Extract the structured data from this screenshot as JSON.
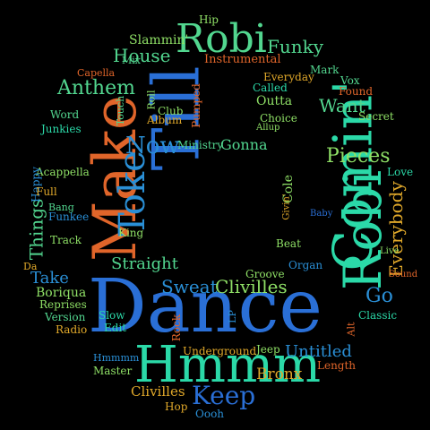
{
  "words": [
    {
      "text": "Dance",
      "color": "#2a6fd6"
    },
    {
      "text": "Hmmm",
      "color": "#2bd9a8"
    },
    {
      "text": "Comin'",
      "color": "#2bd9a8"
    },
    {
      "text": "Robi",
      "color": "#2bd9a8"
    },
    {
      "text": "Robi",
      "color": "#52d68f"
    },
    {
      "text": "Till",
      "color": "#2a6fd6"
    },
    {
      "text": "Make",
      "color": "#e0652a"
    },
    {
      "text": "Toke",
      "color": "#2a8fd6"
    },
    {
      "text": "Keep",
      "color": "#2a6fd6"
    },
    {
      "text": "Pieces",
      "color": "#8fe066"
    },
    {
      "text": "Everybody",
      "color": "#e0a82a"
    },
    {
      "text": "Things",
      "color": "#52d68f"
    },
    {
      "text": "Now",
      "color": "#2a8fd6"
    },
    {
      "text": "Anthem",
      "color": "#52d68f"
    },
    {
      "text": "House",
      "color": "#52d68f"
    },
    {
      "text": "Funky",
      "color": "#52d68f"
    },
    {
      "text": "Want",
      "color": "#52d68f"
    },
    {
      "text": "Sweat",
      "color": "#2a8fd6"
    },
    {
      "text": "Clivilles",
      "color": "#8fe066"
    },
    {
      "text": "Straight",
      "color": "#52d68f"
    },
    {
      "text": "Go",
      "color": "#2a8fd6"
    },
    {
      "text": "Take",
      "color": "#2a8fd6"
    },
    {
      "text": "Untitled",
      "color": "#2a8fd6"
    },
    {
      "text": "Clivilles",
      "color": "#e0a82a"
    },
    {
      "text": "Bronx",
      "color": "#e0a82a"
    },
    {
      "text": "Boriqua",
      "color": "#8fe066"
    },
    {
      "text": "Gonna",
      "color": "#52d68f"
    },
    {
      "text": "Slammin'",
      "color": "#8fe066"
    },
    {
      "text": "Instrumental",
      "color": "#e0652a"
    },
    {
      "text": "Everyday",
      "color": "#e0a82a"
    },
    {
      "text": "Outta",
      "color": "#8fe066"
    },
    {
      "text": "Called",
      "color": "#2bd9a8"
    },
    {
      "text": "Choice",
      "color": "#8fe066"
    },
    {
      "text": "Ministry",
      "color": "#52d68f"
    },
    {
      "text": "Club",
      "color": "#8fe066"
    },
    {
      "text": "Album",
      "color": "#e0a82a"
    },
    {
      "text": "Pumped",
      "color": "#e0652a"
    },
    {
      "text": "Acappella",
      "color": "#8fe066"
    },
    {
      "text": "Junkies",
      "color": "#2bd9a8"
    },
    {
      "text": "Word",
      "color": "#52d68f"
    },
    {
      "text": "Reprises",
      "color": "#8fe066"
    },
    {
      "text": "Version",
      "color": "#52d68f"
    },
    {
      "text": "Radio",
      "color": "#e0a82a"
    },
    {
      "text": "Slow",
      "color": "#2bd9a8"
    },
    {
      "text": "Edit",
      "color": "#2bd9a8"
    },
    {
      "text": "Master",
      "color": "#8fe066"
    },
    {
      "text": "Length",
      "color": "#e0652a"
    },
    {
      "text": "Classic",
      "color": "#2bd9a8"
    },
    {
      "text": "Organ",
      "color": "#2a8fd6"
    },
    {
      "text": "Beat",
      "color": "#8fe066"
    },
    {
      "text": "Cole",
      "color": "#8fe066"
    },
    {
      "text": "Love",
      "color": "#2bd9a8"
    },
    {
      "text": "Secret",
      "color": "#8fe066"
    },
    {
      "text": "Found",
      "color": "#e0652a"
    },
    {
      "text": "Vox",
      "color": "#52d68f"
    },
    {
      "text": "Mark",
      "color": "#52d68f"
    },
    {
      "text": "Hip",
      "color": "#8fe066"
    },
    {
      "text": "Hop",
      "color": "#e0a82a"
    },
    {
      "text": "Oooh",
      "color": "#2a8fd6"
    },
    {
      "text": "Jeep",
      "color": "#8fe066"
    },
    {
      "text": "Underground",
      "color": "#e0a82a"
    },
    {
      "text": "Rock",
      "color": "#e0652a"
    },
    {
      "text": "Groove",
      "color": "#8fe066"
    },
    {
      "text": "Track",
      "color": "#8fe066"
    },
    {
      "text": "Funkee",
      "color": "#2a8fd6"
    },
    {
      "text": "King",
      "color": "#8fe066"
    },
    {
      "text": "Happy",
      "color": "#2a8fd6"
    },
    {
      "text": "Full",
      "color": "#e0a82a"
    },
    {
      "text": "Bang",
      "color": "#52d68f"
    },
    {
      "text": "Capella",
      "color": "#e0652a"
    },
    {
      "text": "Mix",
      "color": "#52d68f"
    },
    {
      "text": "Roll",
      "color": "#8fe066"
    },
    {
      "text": "Touch",
      "color": "#52d68f"
    },
    {
      "text": "Da",
      "color": "#e0a82a"
    },
    {
      "text": "Alt",
      "color": "#e0652a"
    },
    {
      "text": "LP",
      "color": "#2a8fd6"
    },
    {
      "text": "Givin'",
      "color": "#e0a82a"
    },
    {
      "text": "Hmmmm",
      "color": "#2a8fd6"
    },
    {
      "text": "Live",
      "color": "#8fe066"
    },
    {
      "text": "Sound",
      "color": "#e0652a"
    },
    {
      "text": "Allup",
      "color": "#8fe066"
    },
    {
      "text": "Baby",
      "color": "#2a6fd6"
    }
  ]
}
